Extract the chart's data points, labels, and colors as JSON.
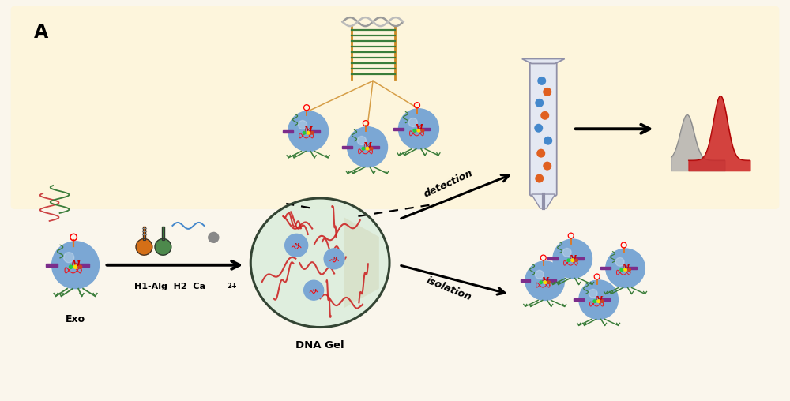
{
  "bg_color": "#faf6ec",
  "border_color": "#4a7c2f",
  "top_bg": "#fdf5dc",
  "label_A": "A",
  "label_exo": "Exo",
  "label_h1alg": "H1-Alg H2 Ca",
  "label_ca_sup": "2+",
  "label_dnagel": "DNA Gel",
  "label_detection": "detection",
  "label_isolation": "isolation",
  "exo_color": "#7ba7d4",
  "red_m": "#cc0000",
  "purple_bar": "#7b2d8b",
  "green_leg": "#3a7d3a",
  "orange_antenna": "#e07820",
  "gel_red": "#cc2222",
  "hist_red": "#cc2222",
  "hist_gray": "#aaaaaa",
  "dna_color": "#cc8822",
  "dna_green": "#3a7d3a",
  "flask_orange": "#d06000",
  "flask_green": "#3a7d3a",
  "flow_orange": "#e06020",
  "flow_blue": "#4488cc"
}
